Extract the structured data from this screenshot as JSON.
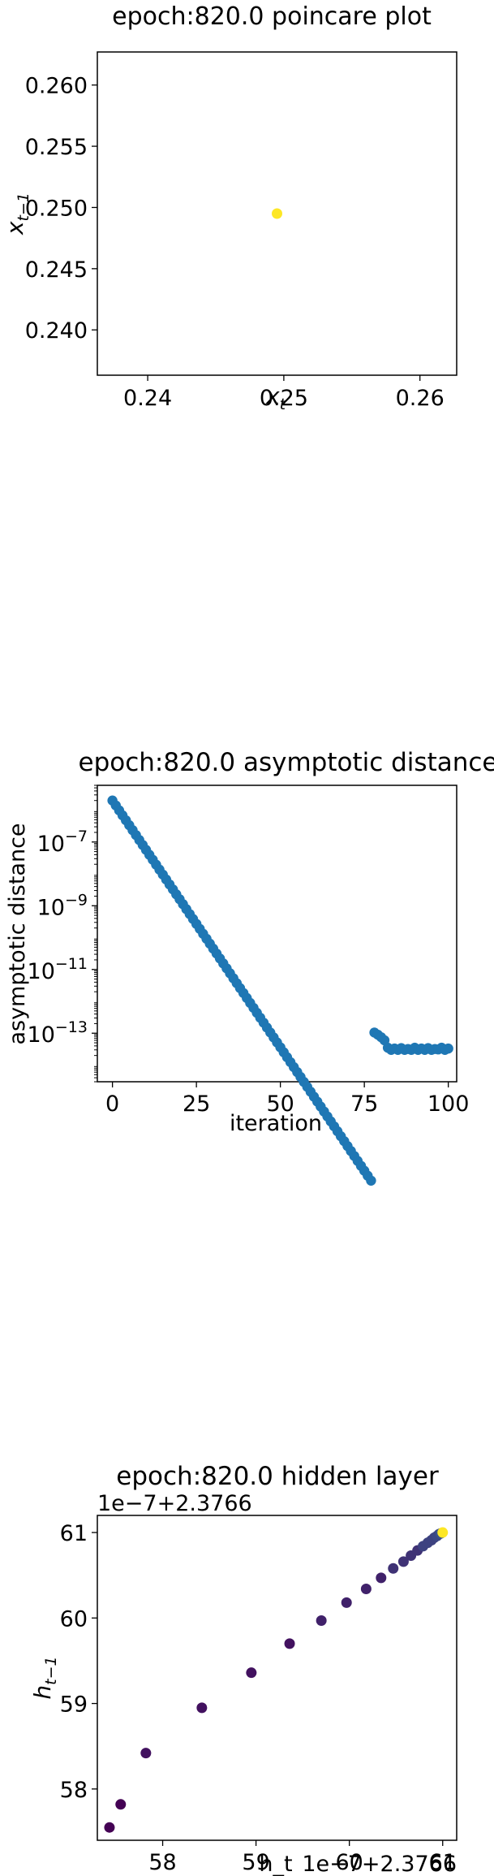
{
  "chart_data": [
    {
      "type": "scatter",
      "title": "epoch:820.0 poincare plot",
      "xlabel": "x",
      "xlabel_sub": "t",
      "ylabel": "x",
      "ylabel_sub": "t−1",
      "xlim": [
        0.2363,
        0.2627
      ],
      "ylim": [
        0.2363,
        0.2627
      ],
      "xticks": [
        0.24,
        0.25,
        0.26
      ],
      "xtick_labels": [
        "0.24",
        "0.25",
        "0.26"
      ],
      "yticks": [
        0.24,
        0.245,
        0.25,
        0.255,
        0.26
      ],
      "ytick_labels": [
        "0.240",
        "0.245",
        "0.250",
        "0.255",
        "0.260"
      ],
      "grid": false,
      "color": "#fde725",
      "points": [
        {
          "x": 0.2495,
          "y": 0.2495
        }
      ]
    },
    {
      "type": "scatter",
      "title": "epoch:820.0 asymptotic distance",
      "xlabel": "iteration",
      "ylabel": "asymptotic distance",
      "yscale": "log",
      "xlim": [
        -4.5,
        102.5
      ],
      "ylim": [
        3e-15,
        6e-06
      ],
      "xticks": [
        0,
        25,
        50,
        75,
        100
      ],
      "xtick_labels": [
        "0",
        "25",
        "50",
        "75",
        "100"
      ],
      "yticks": [
        1e-13,
        1e-11,
        1e-09,
        1e-07
      ],
      "ytick_bases": [
        "10",
        "10",
        "10",
        "10"
      ],
      "ytick_exps": [
        "−13",
        "−11",
        "−9",
        "−7"
      ],
      "grid": false,
      "color": "#1f77b4",
      "pattern": {
        "start_value": 2e-06,
        "decay_per_iteration": 0.7,
        "plateau_from_iteration": 82,
        "plateau_values": [
          3.5e-14,
          3e-14,
          3.3e-14,
          3e-14,
          3.4e-14,
          3e-14,
          3.2e-14,
          3e-14,
          3.5e-14,
          3e-14,
          3.3e-14,
          3e-14,
          3.4e-14,
          3e-14,
          3.2e-14,
          3.1e-14,
          3.5e-14,
          3e-14,
          3.3e-14
        ],
        "count": 101
      }
    },
    {
      "type": "scatter",
      "title": "epoch:820.0 hidden layer",
      "xlabel": "h_t",
      "ylabel": "h",
      "ylabel_sub": "t−1",
      "offset_text_x": "1e−7+2.3766",
      "offset_text_y": "1e−7+2.3766",
      "xlim": [
        57.3,
        61.15
      ],
      "ylim": [
        57.4,
        61.2
      ],
      "xticks": [
        58,
        59,
        60,
        61
      ],
      "xtick_labels": [
        "58",
        "59",
        "60",
        "61"
      ],
      "yticks": [
        58,
        59,
        60,
        61
      ],
      "ytick_labels": [
        "58",
        "59",
        "60",
        "61"
      ],
      "grid": false,
      "colormap": "viridis",
      "points": [
        {
          "x": 57.43,
          "y": 57.55,
          "c": 0.0
        },
        {
          "x": 57.55,
          "y": 57.82,
          "c": 0.0
        },
        {
          "x": 57.82,
          "y": 58.42,
          "c": 0.05
        },
        {
          "x": 58.42,
          "y": 58.95,
          "c": 0.05
        },
        {
          "x": 58.95,
          "y": 59.36,
          "c": 0.05
        },
        {
          "x": 59.36,
          "y": 59.7,
          "c": 0.05
        },
        {
          "x": 59.7,
          "y": 59.97,
          "c": 0.1
        },
        {
          "x": 59.97,
          "y": 60.18,
          "c": 0.1
        },
        {
          "x": 60.18,
          "y": 60.34,
          "c": 0.1
        },
        {
          "x": 60.34,
          "y": 60.47,
          "c": 0.1
        },
        {
          "x": 60.47,
          "y": 60.58,
          "c": 0.15
        },
        {
          "x": 60.58,
          "y": 60.66,
          "c": 0.15
        },
        {
          "x": 60.66,
          "y": 60.73,
          "c": 0.15
        },
        {
          "x": 60.73,
          "y": 60.79,
          "c": 0.15
        },
        {
          "x": 60.79,
          "y": 60.84,
          "c": 0.2
        },
        {
          "x": 60.84,
          "y": 60.88,
          "c": 0.2
        },
        {
          "x": 60.88,
          "y": 60.91,
          "c": 0.2
        },
        {
          "x": 60.91,
          "y": 60.94,
          "c": 0.2
        },
        {
          "x": 60.94,
          "y": 60.96,
          "c": 0.22
        },
        {
          "x": 60.96,
          "y": 60.98,
          "c": 0.22
        },
        {
          "x": 60.98,
          "y": 60.99,
          "c": 0.25
        },
        {
          "x": 61.0,
          "y": 61.0,
          "c": 1.0
        }
      ]
    }
  ]
}
